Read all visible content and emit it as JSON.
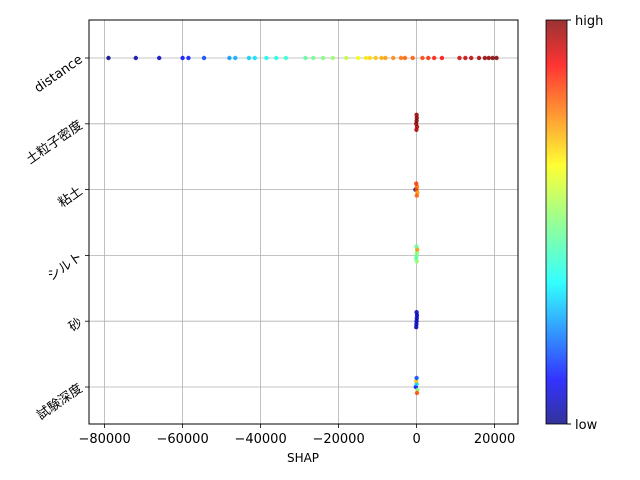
{
  "chart_data": {
    "type": "scatter",
    "subtype": "shap-beeswarm",
    "title": "",
    "xlabel": "SHAP",
    "ylabel": "",
    "xlim": [
      -84000,
      26000
    ],
    "x_ticks": [
      -80000,
      -60000,
      -40000,
      -20000,
      0,
      20000
    ],
    "x_tick_labels": [
      "−80000",
      "−60000",
      "−40000",
      "−20000",
      "0",
      "20000"
    ],
    "grid": true,
    "features": [
      "distance",
      "土粒子密度",
      "粘土",
      "シルト",
      "砂",
      "試験深度"
    ],
    "colorbar": {
      "colormap": "jet",
      "high_label": "high",
      "low_label": "low"
    },
    "series": [
      {
        "feature": "distance",
        "points": [
          {
            "x": -79000,
            "v": 0.0
          },
          {
            "x": -72000,
            "v": 0.03
          },
          {
            "x": -66000,
            "v": 0.06
          },
          {
            "x": -60000,
            "v": 0.12
          },
          {
            "x": -58500,
            "v": 0.13
          },
          {
            "x": -54500,
            "v": 0.17
          },
          {
            "x": -48000,
            "v": 0.25
          },
          {
            "x": -46500,
            "v": 0.27
          },
          {
            "x": -43000,
            "v": 0.3
          },
          {
            "x": -41500,
            "v": 0.32
          },
          {
            "x": -38500,
            "v": 0.36
          },
          {
            "x": -36000,
            "v": 0.38
          },
          {
            "x": -33500,
            "v": 0.4
          },
          {
            "x": -28500,
            "v": 0.46
          },
          {
            "x": -26500,
            "v": 0.48
          },
          {
            "x": -24000,
            "v": 0.5
          },
          {
            "x": -21500,
            "v": 0.53
          },
          {
            "x": -18000,
            "v": 0.58
          },
          {
            "x": -15000,
            "v": 0.63
          },
          {
            "x": -13000,
            "v": 0.66
          },
          {
            "x": -12000,
            "v": 0.68
          },
          {
            "x": -10500,
            "v": 0.7
          },
          {
            "x": -9000,
            "v": 0.72
          },
          {
            "x": -8000,
            "v": 0.74
          },
          {
            "x": -6000,
            "v": 0.76
          },
          {
            "x": -4000,
            "v": 0.78
          },
          {
            "x": -3000,
            "v": 0.8
          },
          {
            "x": -1000,
            "v": 0.81
          },
          {
            "x": 1500,
            "v": 0.83
          },
          {
            "x": 3000,
            "v": 0.85
          },
          {
            "x": 4500,
            "v": 0.87
          },
          {
            "x": 6500,
            "v": 0.88
          },
          {
            "x": 11000,
            "v": 0.93
          },
          {
            "x": 12500,
            "v": 0.94
          },
          {
            "x": 14000,
            "v": 0.95
          },
          {
            "x": 16000,
            "v": 0.97
          },
          {
            "x": 17500,
            "v": 0.98
          },
          {
            "x": 18500,
            "v": 0.99
          },
          {
            "x": 19500,
            "v": 1.0
          },
          {
            "x": 20500,
            "v": 1.0
          }
        ]
      },
      {
        "feature": "土粒子密度",
        "points": [
          {
            "x": -100,
            "v": 0.98
          },
          {
            "x": 0,
            "v": 1.0
          },
          {
            "x": 100,
            "v": 0.97
          },
          {
            "x": 50,
            "v": 0.99
          },
          {
            "x": -50,
            "v": 0.96
          },
          {
            "x": 0,
            "v": 0.98
          }
        ]
      },
      {
        "feature": "粘土",
        "points": [
          {
            "x": -300,
            "v": 0.0
          },
          {
            "x": 0,
            "v": 0.82
          },
          {
            "x": 100,
            "v": 0.78
          },
          {
            "x": 200,
            "v": 0.74
          },
          {
            "x": -100,
            "v": 0.84
          },
          {
            "x": 50,
            "v": 0.8
          }
        ]
      },
      {
        "feature": "シルト",
        "points": [
          {
            "x": 0,
            "v": 0.48
          },
          {
            "x": 100,
            "v": 0.5
          },
          {
            "x": -100,
            "v": 0.45
          },
          {
            "x": 150,
            "v": 0.75
          },
          {
            "x": 50,
            "v": 0.52
          },
          {
            "x": -50,
            "v": 0.47
          }
        ]
      },
      {
        "feature": "砂",
        "points": [
          {
            "x": 0,
            "v": 0.05
          },
          {
            "x": 50,
            "v": 0.04
          },
          {
            "x": -50,
            "v": 0.05
          },
          {
            "x": 100,
            "v": 0.06
          },
          {
            "x": -100,
            "v": 0.04
          },
          {
            "x": 0,
            "v": 0.05
          }
        ]
      },
      {
        "feature": "試験深度",
        "points": [
          {
            "x": -200,
            "v": 0.12
          },
          {
            "x": 0,
            "v": 0.3
          },
          {
            "x": 200,
            "v": 0.5
          },
          {
            "x": -100,
            "v": 0.7
          },
          {
            "x": 100,
            "v": 0.82
          },
          {
            "x": 0,
            "v": 0.18
          }
        ]
      }
    ]
  }
}
